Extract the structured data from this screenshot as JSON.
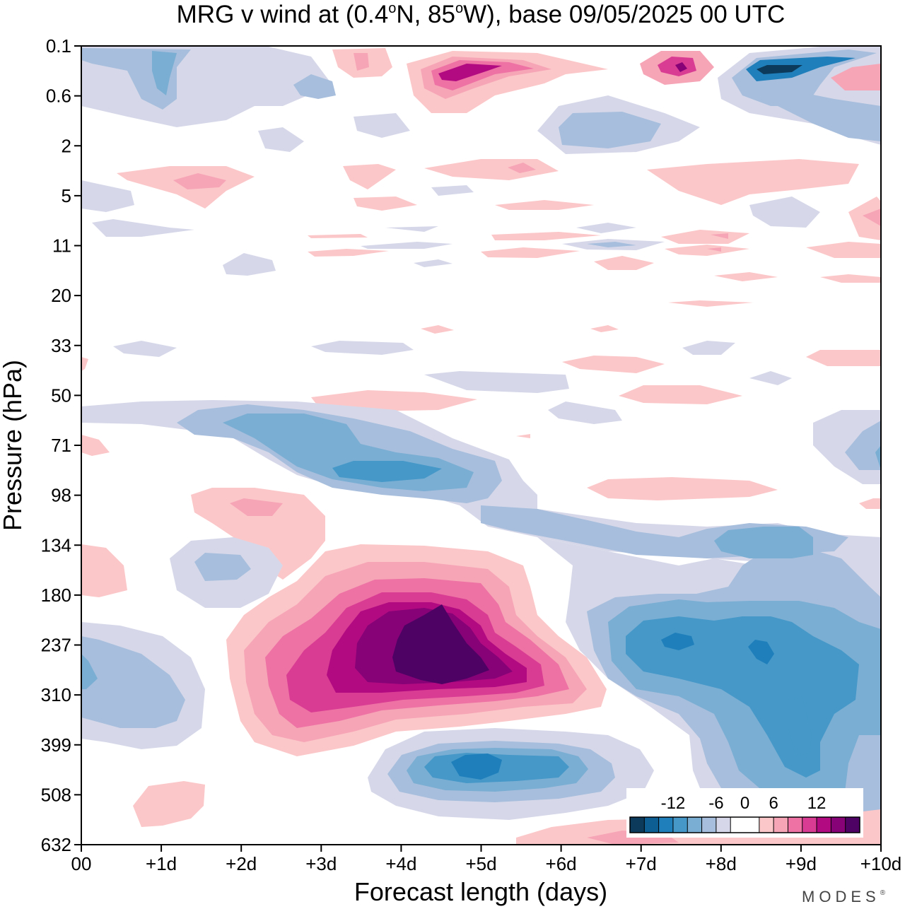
{
  "chart_data": {
    "type": "heatmap",
    "title_parts": {
      "pre": "MRG v wind at (0.4",
      "deg1": "o",
      "mid": "N, 85",
      "deg2": "o",
      "post": "W),  base 09/05/2025  00 UTC"
    },
    "xlabel": "Forecast length (days)",
    "ylabel": "Pressure (hPa)",
    "x_ticks": [
      "00",
      "+1d",
      "+2d",
      "+3d",
      "+4d",
      "+5d",
      "+6d",
      "+7d",
      "+8d",
      "+9d",
      "+10d"
    ],
    "x_range_days": [
      0,
      10
    ],
    "y_ticks": [
      "0.1",
      "0.6",
      "2",
      "5",
      "11",
      "20",
      "33",
      "50",
      "71",
      "98",
      "134",
      "180",
      "237",
      "310",
      "399",
      "508",
      "632"
    ],
    "y_range_hPa": [
      0.1,
      632
    ],
    "colorbar": {
      "tick_labels": [
        "-12",
        "-6",
        "0",
        "6",
        "12"
      ],
      "colors": [
        "#0c3a5a",
        "#0d5e92",
        "#1f7fbb",
        "#4598c8",
        "#7aaed3",
        "#a7bedc",
        "#d6d8e9",
        "#ffffff",
        "#ffffff",
        "#fcc7c8",
        "#f6a5b7",
        "#ee72a4",
        "#d93c93",
        "#b20b82",
        "#860276",
        "#4d0264"
      ],
      "placement": "bottom-right"
    },
    "features": [
      {
        "center_day": 4.5,
        "center_hPa": 250,
        "v_min_ms": 14,
        "sign": "positive"
      },
      {
        "center_day": 8.4,
        "center_hPa": 250,
        "v_min_ms": -10,
        "sign": "negative"
      },
      {
        "center_day": 5.0,
        "center_hPa": 450,
        "v_min_ms": -12,
        "sign": "negative"
      },
      {
        "center_day": 4.0,
        "center_hPa": 82,
        "v_min_ms": -8,
        "sign": "negative"
      },
      {
        "center_day": 4.8,
        "center_hPa": 0.35,
        "v_min_ms": 10,
        "sign": "positive"
      },
      {
        "center_day": 8.7,
        "center_hPa": 0.35,
        "v_min_ms": -12,
        "sign": "negative"
      }
    ],
    "grid": false,
    "legend": "none"
  },
  "branding": {
    "logo_text": "MODES",
    "logo_mark": "®"
  }
}
